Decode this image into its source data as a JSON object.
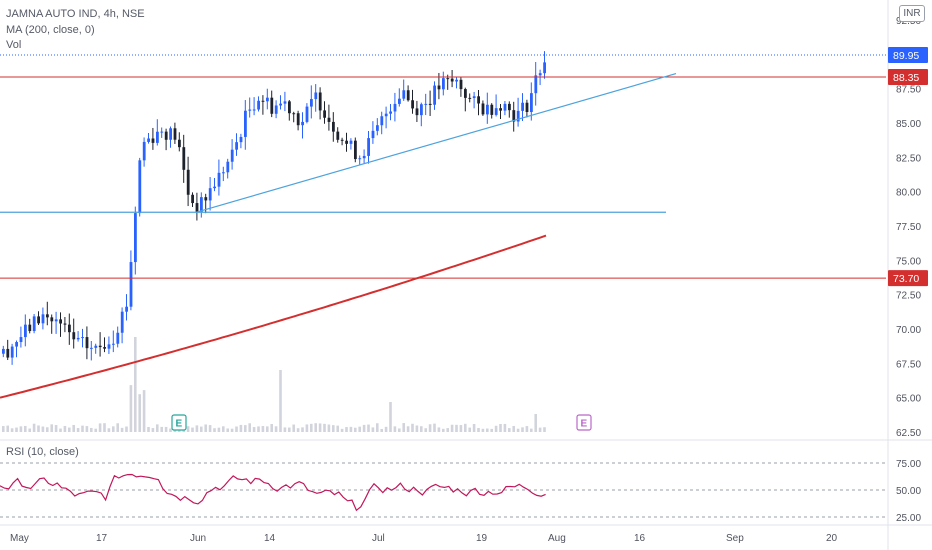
{
  "header": {
    "symbol_line": "JAMNA AUTO IND, 4h, NSE",
    "ma_line": "MA (200, close, 0)",
    "vol_line": "Vol",
    "rsi_line": "RSI (10, close)",
    "currency": "INR"
  },
  "colors": {
    "up_candle": "#2962ff",
    "down_candle": "#1e222d",
    "ma_line": "#d32f2f",
    "resistance": "#d32f2f",
    "support": "#4ca3dd",
    "trendline": "#4ca3dd",
    "current_price": "#2962ff",
    "rsi": "#c2185b",
    "volume": "#d1d4dc",
    "earnings_past": "#26a69a",
    "earnings_future": "#ba68c8"
  },
  "chart_data": {
    "type": "candlestick",
    "interval": "4h",
    "price_axis": {
      "ticks": [
        "92.50",
        "90.00",
        "87.50",
        "85.00",
        "82.50",
        "80.00",
        "77.50",
        "75.00",
        "72.50",
        "70.00",
        "67.50",
        "65.00",
        "62.50"
      ],
      "range": [
        62.5,
        92.5
      ]
    },
    "rsi_axis": {
      "ticks": [
        "75.00",
        "50.00",
        "25.00"
      ],
      "range": [
        25,
        75
      ]
    },
    "time_axis": {
      "labels": [
        "May",
        "17",
        "Jun",
        "14",
        "Jul",
        "19",
        "Aug",
        "16",
        "Sep",
        "20"
      ]
    },
    "current_price": "89.95",
    "price_levels": [
      {
        "label": "88.35",
        "value": 88.35,
        "kind": "resistance"
      },
      {
        "label": "73.70",
        "value": 73.7,
        "kind": "support"
      }
    ],
    "support_line": {
      "value": 78.5
    },
    "trendline": {
      "from": [
        "Jun",
        78.5
      ],
      "to": [
        "Aug 16",
        88.6
      ]
    },
    "earnings_markers": [
      "E",
      "E"
    ],
    "moving_average": {
      "period": 200,
      "start": 65.0,
      "end": 76.8
    },
    "ohlc_samples": [
      {
        "period": "early May",
        "close": 69.5
      },
      {
        "period": "mid May",
        "close": 70.2
      },
      {
        "period": "late May (breakout)",
        "close": 83.5
      },
      {
        "period": "Jun low",
        "close": 78.8
      },
      {
        "period": "mid Jun",
        "close": 87.0
      },
      {
        "period": "early Jul",
        "close": 82.6
      },
      {
        "period": "mid Jul",
        "close": 88.0
      },
      {
        "period": "late Jul",
        "close": 85.5
      },
      {
        "period": "end Jul",
        "close": 89.95
      }
    ]
  }
}
